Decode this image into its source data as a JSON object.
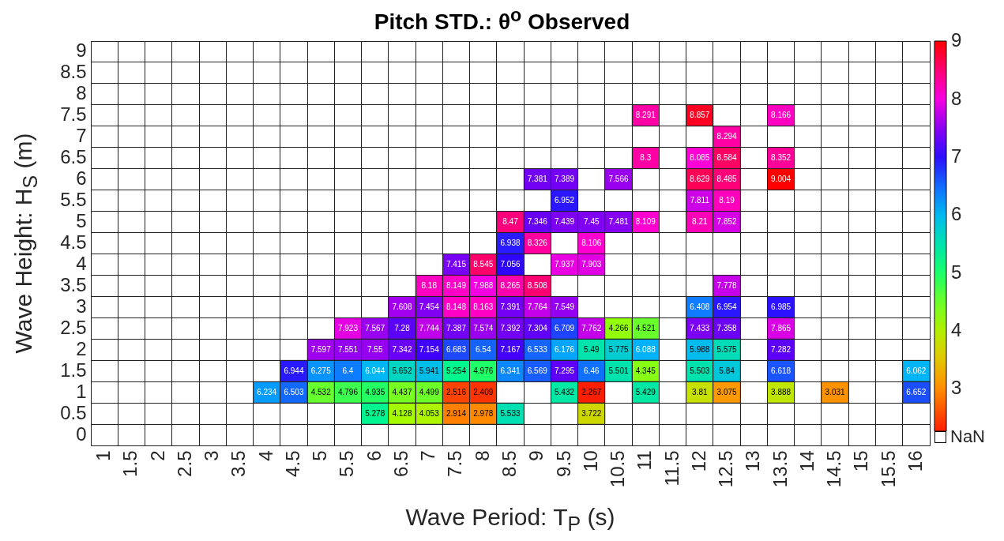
{
  "chart_data": {
    "type": "heatmap",
    "title": "Pitch STD.: θ$^{o}$ Observed",
    "xlabel": "Wave Period: T$_{P}$ (s)",
    "ylabel": "Wave Height: H$_{S}$ (m)",
    "categories": [
      "1",
      "1.5",
      "2",
      "2.5",
      "3",
      "3.5",
      "4",
      "4.5",
      "5",
      "5.5",
      "6",
      "6.5",
      "7",
      "7.5",
      "8",
      "8.5",
      "9",
      "9.5",
      "10",
      "10.5",
      "11",
      "11.5",
      "12",
      "12.5",
      "13",
      "13.5",
      "14",
      "14.5",
      "15",
      "15.5",
      "16"
    ],
    "y_categories": [
      "9",
      "8.5",
      "8",
      "7.5",
      "7",
      "6.5",
      "6",
      "5.5",
      "5",
      "4.5",
      "4",
      "3.5",
      "3",
      "2.5",
      "2",
      "1.5",
      "1",
      "0.5",
      "0"
    ],
    "cells": [
      [
        null,
        null,
        null,
        null,
        null,
        null,
        null,
        null,
        null,
        null,
        null,
        null,
        null,
        null,
        null,
        null,
        null,
        null,
        null,
        null,
        null,
        null,
        null,
        null,
        null,
        null,
        null,
        null,
        null,
        null,
        null
      ],
      [
        null,
        null,
        null,
        null,
        null,
        null,
        null,
        null,
        null,
        null,
        null,
        null,
        null,
        null,
        null,
        null,
        null,
        null,
        null,
        null,
        null,
        null,
        null,
        null,
        null,
        null,
        null,
        null,
        null,
        null,
        null
      ],
      [
        null,
        null,
        null,
        null,
        null,
        null,
        null,
        null,
        null,
        null,
        null,
        null,
        null,
        null,
        null,
        null,
        null,
        null,
        null,
        null,
        null,
        null,
        null,
        null,
        null,
        null,
        null,
        null,
        null,
        null,
        null
      ],
      [
        null,
        null,
        null,
        null,
        null,
        null,
        null,
        null,
        null,
        null,
        null,
        null,
        null,
        null,
        null,
        null,
        null,
        null,
        null,
        null,
        8.291,
        null,
        8.857,
        null,
        null,
        8.166,
        null,
        null,
        null,
        null,
        null
      ],
      [
        null,
        null,
        null,
        null,
        null,
        null,
        null,
        null,
        null,
        null,
        null,
        null,
        null,
        null,
        null,
        null,
        null,
        null,
        null,
        null,
        null,
        null,
        null,
        8.294,
        null,
        null,
        null,
        null,
        null,
        null,
        null
      ],
      [
        null,
        null,
        null,
        null,
        null,
        null,
        null,
        null,
        null,
        null,
        null,
        null,
        null,
        null,
        null,
        null,
        null,
        null,
        null,
        null,
        8.3,
        null,
        8.085,
        8.584,
        null,
        8.352,
        null,
        null,
        null,
        null,
        null
      ],
      [
        null,
        null,
        null,
        null,
        null,
        null,
        null,
        null,
        null,
        null,
        null,
        null,
        null,
        null,
        null,
        null,
        7.381,
        7.389,
        null,
        7.566,
        null,
        null,
        8.629,
        8.485,
        null,
        9.004,
        null,
        null,
        null,
        null,
        null
      ],
      [
        null,
        null,
        null,
        null,
        null,
        null,
        null,
        null,
        null,
        null,
        null,
        null,
        null,
        null,
        null,
        null,
        null,
        6.952,
        null,
        null,
        null,
        null,
        7.811,
        8.19,
        null,
        null,
        null,
        null,
        null,
        null,
        null
      ],
      [
        null,
        null,
        null,
        null,
        null,
        null,
        null,
        null,
        null,
        null,
        null,
        null,
        null,
        null,
        null,
        8.47,
        7.346,
        7.439,
        7.45,
        7.481,
        8.109,
        null,
        8.21,
        7.852,
        null,
        null,
        null,
        null,
        null,
        null,
        null
      ],
      [
        null,
        null,
        null,
        null,
        null,
        null,
        null,
        null,
        null,
        null,
        null,
        null,
        null,
        null,
        null,
        6.938,
        8.326,
        null,
        8.106,
        null,
        null,
        null,
        null,
        null,
        null,
        null,
        null,
        null,
        null,
        null,
        null
      ],
      [
        null,
        null,
        null,
        null,
        null,
        null,
        null,
        null,
        null,
        null,
        null,
        null,
        null,
        7.415,
        8.545,
        7.056,
        null,
        7.937,
        7.903,
        null,
        null,
        null,
        null,
        null,
        null,
        null,
        null,
        null,
        null,
        null,
        null
      ],
      [
        null,
        null,
        null,
        null,
        null,
        null,
        null,
        null,
        null,
        null,
        null,
        null,
        8.18,
        8.149,
        7.988,
        8.265,
        8.508,
        null,
        null,
        null,
        null,
        null,
        null,
        7.778,
        null,
        null,
        null,
        null,
        null,
        null,
        null
      ],
      [
        null,
        null,
        null,
        null,
        null,
        null,
        null,
        null,
        null,
        null,
        null,
        7.608,
        7.454,
        8.148,
        8.163,
        7.391,
        7.764,
        7.549,
        null,
        null,
        null,
        null,
        6.408,
        6.954,
        null,
        6.985,
        null,
        null,
        null,
        null,
        null
      ],
      [
        null,
        null,
        null,
        null,
        null,
        null,
        null,
        null,
        null,
        7.923,
        7.567,
        7.28,
        7.744,
        7.387,
        7.574,
        7.392,
        7.304,
        6.709,
        7.762,
        4.266,
        4.521,
        null,
        7.433,
        7.358,
        null,
        7.865,
        null,
        null,
        null,
        null,
        null
      ],
      [
        null,
        null,
        null,
        null,
        null,
        null,
        null,
        null,
        7.597,
        7.551,
        7.55,
        7.342,
        7.154,
        6.683,
        6.54,
        7.167,
        6.533,
        6.176,
        5.49,
        5.775,
        6.088,
        null,
        5.988,
        5.575,
        null,
        7.282,
        null,
        null,
        null,
        null,
        null
      ],
      [
        null,
        null,
        null,
        null,
        null,
        null,
        null,
        6.944,
        6.275,
        6.4,
        6.044,
        5.652,
        5.941,
        5.254,
        4.976,
        6.341,
        6.569,
        7.295,
        6.46,
        5.501,
        4.345,
        null,
        5.503,
        5.84,
        null,
        6.618,
        null,
        null,
        null,
        null,
        6.062
      ],
      [
        null,
        null,
        null,
        null,
        null,
        null,
        6.234,
        6.503,
        4.532,
        4.796,
        4.935,
        4.437,
        4.499,
        2.516,
        2.409,
        null,
        null,
        5.432,
        2.267,
        null,
        5.429,
        null,
        3.81,
        3.075,
        null,
        3.888,
        null,
        3.031,
        null,
        null,
        6.652
      ],
      [
        null,
        null,
        null,
        null,
        null,
        null,
        null,
        null,
        null,
        null,
        5.278,
        4.128,
        4.053,
        2.914,
        2.978,
        5.533,
        null,
        null,
        3.722,
        null,
        null,
        null,
        null,
        null,
        null,
        null,
        null,
        null,
        null,
        null,
        null
      ],
      [
        null,
        null,
        null,
        null,
        null,
        null,
        null,
        null,
        null,
        null,
        null,
        null,
        null,
        null,
        null,
        null,
        null,
        null,
        null,
        null,
        null,
        null,
        null,
        null,
        null,
        null,
        null,
        null,
        null,
        null,
        null
      ]
    ],
    "clim": [
      2.267,
      9.004
    ],
    "cticks": [
      3,
      4,
      5,
      6,
      7,
      8,
      9
    ],
    "grid": true,
    "data_labels": true,
    "annotations": [
      "NaN"
    ]
  }
}
